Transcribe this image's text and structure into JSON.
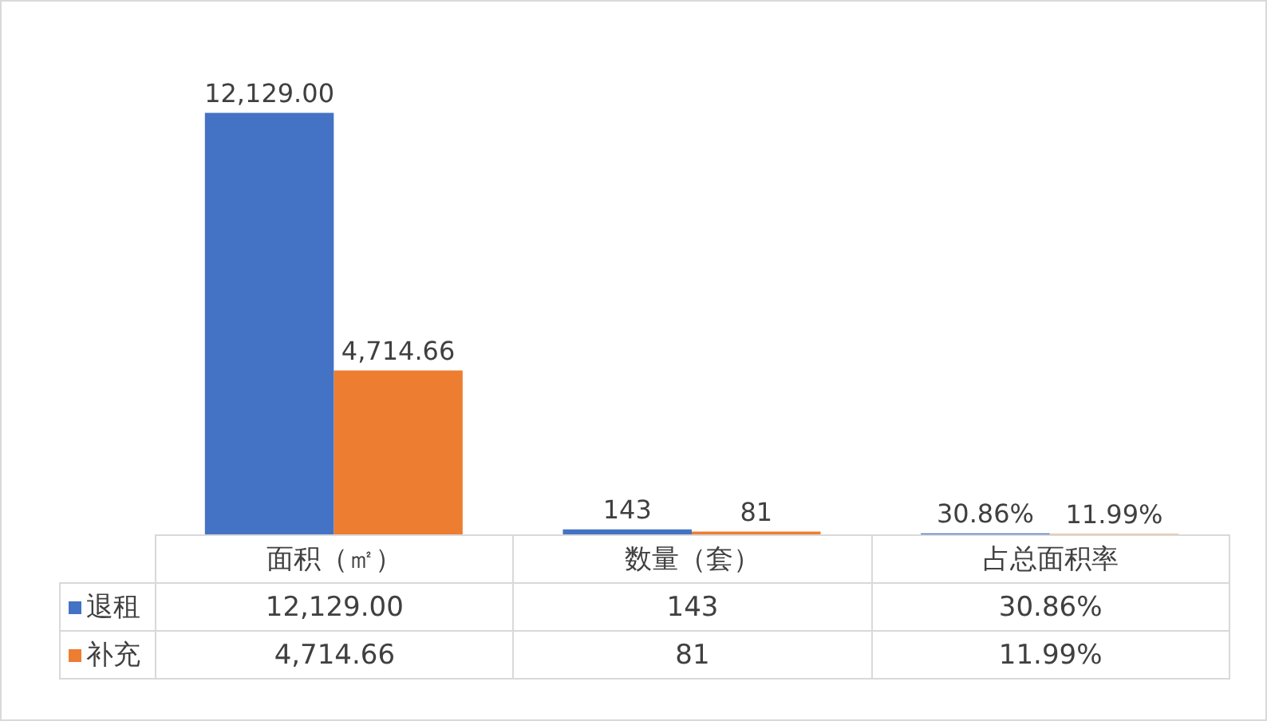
{
  "chart_data": {
    "type": "bar",
    "categories": [
      "面积（㎡）",
      "数量（套）",
      "占总面积率"
    ],
    "series": [
      {
        "name": "退租",
        "color": "#4472c4",
        "values": [
          12129,
          143,
          30.86
        ],
        "value_labels": [
          "12,129.00",
          "143",
          "30.86%"
        ]
      },
      {
        "name": "补充",
        "color": "#ed7d31",
        "values": [
          4714.66,
          81,
          11.99
        ],
        "value_labels": [
          "4,714.66",
          "81",
          "11.99%"
        ]
      }
    ],
    "data_labels": true,
    "legend": "bottom"
  }
}
